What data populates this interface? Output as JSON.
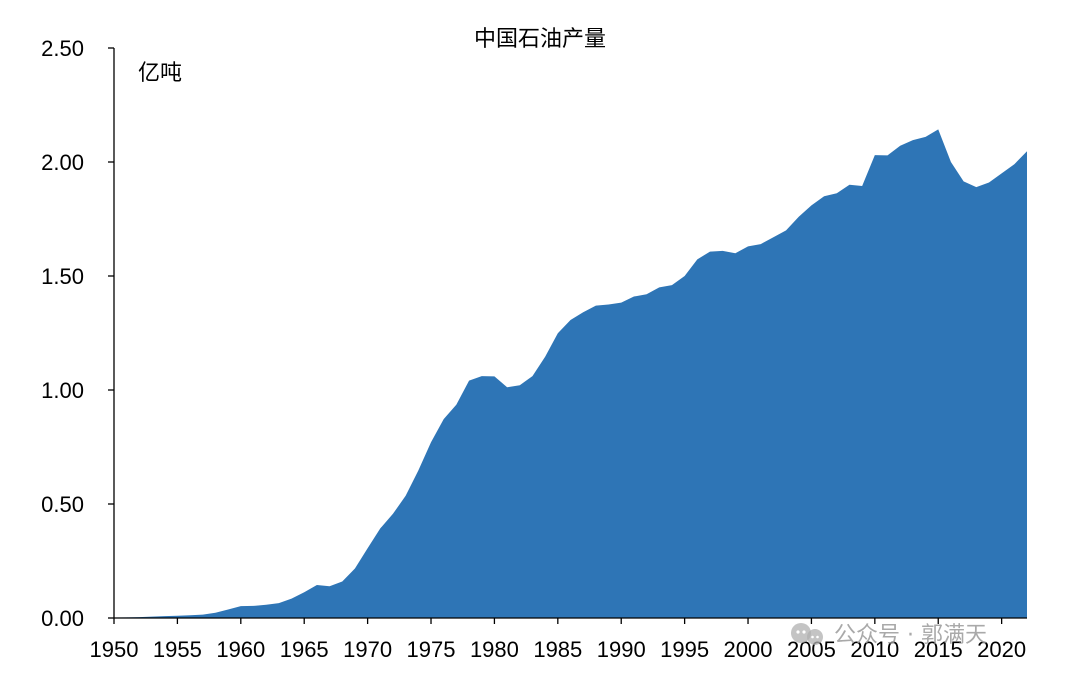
{
  "chart_data": {
    "type": "area",
    "title": "中国石油产量",
    "unit_label": "亿吨",
    "xlabel": "",
    "ylabel": "",
    "xlim": [
      1950,
      2022
    ],
    "ylim": [
      0,
      2.5
    ],
    "y_ticks": [
      "0.00",
      "0.50",
      "1.00",
      "1.50",
      "2.00",
      "2.50"
    ],
    "x_ticks": [
      "1950",
      "1955",
      "1960",
      "1965",
      "1970",
      "1975",
      "1980",
      "1985",
      "1990",
      "1995",
      "2000",
      "2005",
      "2010",
      "2015",
      "2020"
    ],
    "grid": false,
    "legend": "none",
    "colors": {
      "area": "#2e75b6",
      "axis": "#000000"
    },
    "series": [
      {
        "x": [
          1950,
          1951,
          1952,
          1953,
          1954,
          1955,
          1956,
          1957,
          1958,
          1959,
          1960,
          1961,
          1962,
          1963,
          1964,
          1965,
          1966,
          1967,
          1968,
          1969,
          1970,
          1971,
          1972,
          1973,
          1974,
          1975,
          1976,
          1977,
          1978,
          1979,
          1980,
          1981,
          1982,
          1983,
          1984,
          1985,
          1986,
          1987,
          1988,
          1989,
          1990,
          1991,
          1992,
          1993,
          1994,
          1995,
          1996,
          1997,
          1998,
          1999,
          2000,
          2001,
          2002,
          2003,
          2004,
          2005,
          2006,
          2007,
          2008,
          2009,
          2010,
          2011,
          2012,
          2013,
          2014,
          2015,
          2016,
          2017,
          2018,
          2019,
          2020,
          2021,
          2022
        ],
        "values": [
          0.002,
          0.003,
          0.004,
          0.006,
          0.008,
          0.01,
          0.012,
          0.015,
          0.023,
          0.037,
          0.052,
          0.053,
          0.058,
          0.065,
          0.085,
          0.113,
          0.145,
          0.139,
          0.16,
          0.217,
          0.306,
          0.393,
          0.457,
          0.536,
          0.647,
          0.771,
          0.872,
          0.936,
          1.041,
          1.061,
          1.06,
          1.012,
          1.021,
          1.061,
          1.146,
          1.249,
          1.307,
          1.341,
          1.37,
          1.375,
          1.383,
          1.41,
          1.42,
          1.45,
          1.46,
          1.5,
          1.573,
          1.607,
          1.61,
          1.6,
          1.63,
          1.64,
          1.67,
          1.7,
          1.76,
          1.81,
          1.85,
          1.863,
          1.9,
          1.895,
          2.03,
          2.029,
          2.071,
          2.096,
          2.11,
          2.143,
          2.0,
          1.915,
          1.89,
          1.91,
          1.95,
          1.99,
          2.047
        ]
      }
    ]
  },
  "watermark": {
    "icon": "wechat-icon",
    "text": "公众号 · 郭满天"
  }
}
